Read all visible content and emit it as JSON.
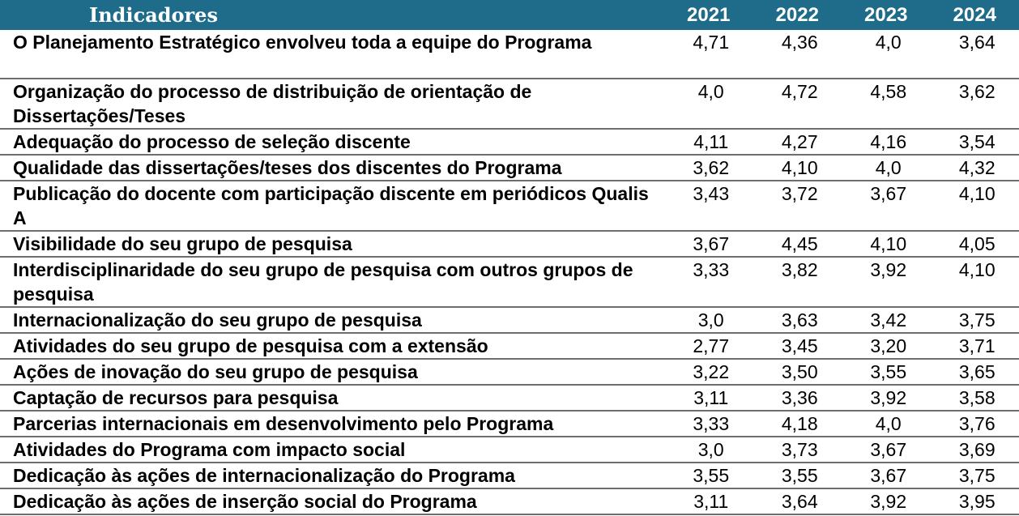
{
  "header": {
    "indicator_label": "Indicadores",
    "years": [
      "2021",
      "2022",
      "2023",
      "2024"
    ]
  },
  "rows": [
    {
      "label": "O Planejamento Estratégico envolveu toda a equipe do Programa",
      "values": [
        "4,71",
        "4,36",
        "4,0",
        "3,64"
      ]
    },
    {
      "label": "Organização do processo de distribuição de orientação de Dissertações/Teses",
      "values": [
        "4,0",
        "4,72",
        "4,58",
        "3,62"
      ]
    },
    {
      "label": "Adequação do processo de seleção discente",
      "values": [
        "4,11",
        "4,27",
        "4,16",
        "3,54"
      ]
    },
    {
      "label": "Qualidade das dissertações/teses dos discentes do Programa",
      "values": [
        "3,62",
        "4,10",
        "4,0",
        "4,32"
      ]
    },
    {
      "label": "Publicação do docente com participação discente em periódicos Qualis A",
      "values": [
        "3,43",
        "3,72",
        "3,67",
        "4,10"
      ]
    },
    {
      "label": "Visibilidade do seu grupo de pesquisa",
      "values": [
        "3,67",
        "4,45",
        "4,10",
        "4,05"
      ]
    },
    {
      "label": "Interdisciplinaridade do seu grupo de pesquisa com outros grupos de pesquisa",
      "values": [
        "3,33",
        "3,82",
        "3,92",
        "4,10"
      ]
    },
    {
      "label": "Internacionalização do seu grupo de pesquisa",
      "values": [
        "3,0",
        "3,63",
        "3,42",
        "3,75"
      ]
    },
    {
      "label": "Atividades do seu grupo de pesquisa com a extensão",
      "values": [
        "2,77",
        "3,45",
        "3,20",
        "3,71"
      ]
    },
    {
      "label": "Ações de inovação do seu grupo de pesquisa",
      "values": [
        "3,22",
        "3,50",
        "3,55",
        "3,65"
      ]
    },
    {
      "label": "Captação de recursos para pesquisa",
      "values": [
        "3,11",
        "3,36",
        "3,92",
        "3,58"
      ]
    },
    {
      "label": "Parcerias internacionais em desenvolvimento pelo Programa",
      "values": [
        "3,33",
        "4,18",
        "4,0",
        "3,76"
      ]
    },
    {
      "label": "Atividades do Programa com impacto social",
      "values": [
        "3,0",
        "3,73",
        "3,67",
        "3,69"
      ]
    },
    {
      "label": "Dedicação às ações de internacionalização do Programa",
      "values": [
        "3,55",
        "3,55",
        "3,67",
        "3,75"
      ]
    },
    {
      "label": "Dedicação às ações de inserção social do Programa",
      "values": [
        "3,11",
        "3,64",
        "3,92",
        "3,95"
      ]
    }
  ],
  "colors": {
    "header_background": "#1f6b8a",
    "header_text": "#ffffff",
    "row_divider": "#6e6e6e",
    "body_text": "#000000"
  }
}
